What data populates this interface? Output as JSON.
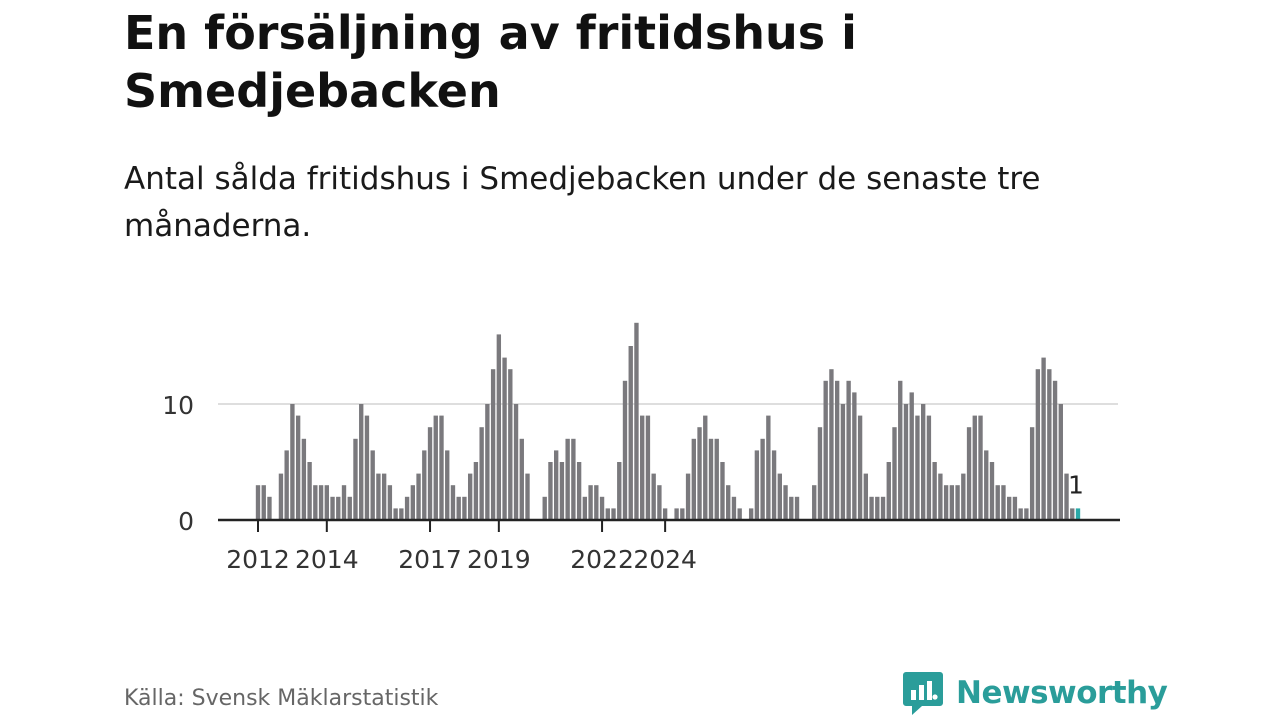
{
  "header": {
    "title": "En försäljning av fritidshus i Smedjebacken",
    "subtitle": "Antal sålda fritidshus i Smedjebacken under de senaste tre månaderna."
  },
  "footer": {
    "source": "Källa: Svensk Mäklarstatistik",
    "brand": "Newsworthy",
    "brand_color": "#2a9d9a"
  },
  "chart_data": {
    "type": "bar",
    "title": "En försäljning av fritidshus i Smedjebacken",
    "xlabel": "",
    "ylabel": "",
    "ylim": [
      0,
      17
    ],
    "grid": true,
    "y_ticks": [
      0,
      10
    ],
    "x_tick_labels": [
      "2012",
      "2014",
      "2017",
      "2019",
      "2022",
      "2024"
    ],
    "bar_color": "#7a797d",
    "highlight_color": "#2aa9a8",
    "highlight_label": "1",
    "series": [
      {
        "name": "Antal sålda fritidshus",
        "values": [
          3,
          3,
          2,
          null,
          4,
          6,
          10,
          9,
          7,
          5,
          3,
          3,
          3,
          2,
          2,
          3,
          2,
          7,
          10,
          9,
          6,
          4,
          4,
          3,
          1,
          1,
          2,
          3,
          4,
          6,
          8,
          9,
          9,
          6,
          3,
          2,
          2,
          4,
          5,
          8,
          10,
          13,
          16,
          14,
          13,
          10,
          7,
          4,
          null,
          null,
          2,
          5,
          6,
          5,
          7,
          7,
          5,
          2,
          3,
          3,
          2,
          1,
          1,
          5,
          12,
          15,
          17,
          9,
          9,
          4,
          3,
          1,
          null,
          1,
          1,
          4,
          7,
          8,
          9,
          7,
          7,
          5,
          3,
          2,
          1,
          null,
          1,
          6,
          7,
          9,
          6,
          4,
          3,
          2,
          2,
          null,
          null,
          3,
          8,
          12,
          13,
          12,
          10,
          12,
          11,
          9,
          4,
          2,
          2,
          2,
          5,
          8,
          12,
          10,
          11,
          9,
          10,
          9,
          5,
          4,
          3,
          3,
          3,
          4,
          8,
          9,
          9,
          6,
          5,
          3,
          3,
          2,
          2,
          1,
          1,
          8,
          13,
          14,
          13,
          12,
          10,
          4,
          1,
          1
        ]
      }
    ]
  }
}
